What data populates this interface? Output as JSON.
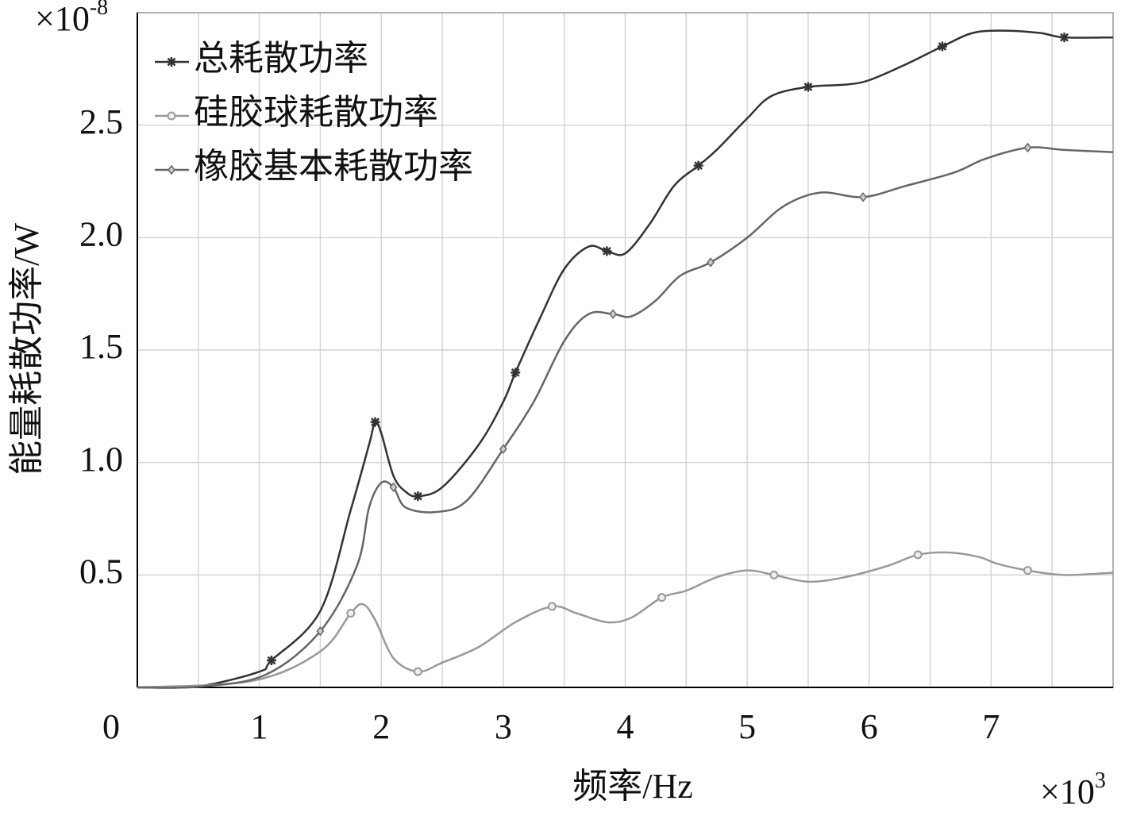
{
  "chart_data": {
    "type": "line",
    "y_label": "能量耗散功率/W",
    "x_label": "频率/Hz",
    "y_multiplier": {
      "base": "×10",
      "exponent": "-8"
    },
    "x_multiplier": {
      "base": "×10",
      "exponent": "3"
    },
    "xlim": [
      0,
      8
    ],
    "xticks": [
      0,
      1,
      2,
      3,
      4,
      5,
      6,
      7
    ],
    "ylim": [
      0,
      3
    ],
    "yticks": [
      0.5,
      {
        "value": 1,
        "label": "1.0"
      },
      1.5,
      {
        "value": 2,
        "label": "2.0"
      },
      2.5
    ],
    "grid": true,
    "legend": "upper left",
    "series": [
      {
        "name": "总耗散功率",
        "color": "#333333",
        "marker": "star",
        "x": [
          0,
          0.5,
          1.0,
          1.1,
          1.5,
          1.75,
          1.9,
          1.95,
          2.0,
          2.1,
          2.2,
          2.3,
          2.5,
          2.8,
          3.0,
          3.1,
          3.3,
          3.5,
          3.7,
          3.85,
          4.0,
          4.2,
          4.4,
          4.6,
          4.75,
          5.0,
          5.2,
          5.5,
          5.8,
          6.0,
          6.3,
          6.6,
          6.85,
          7.1,
          7.4,
          7.6,
          8.0
        ],
        "values": [
          0,
          0.005,
          0.07,
          0.12,
          0.34,
          0.79,
          1.08,
          1.18,
          1.13,
          0.94,
          0.87,
          0.85,
          0.89,
          1.08,
          1.27,
          1.4,
          1.64,
          1.86,
          1.96,
          1.94,
          1.93,
          2.06,
          2.23,
          2.32,
          2.39,
          2.53,
          2.63,
          2.67,
          2.68,
          2.7,
          2.77,
          2.85,
          2.91,
          2.92,
          2.91,
          2.89,
          2.89
        ]
      },
      {
        "name": "硅胶球耗散功率",
        "color": "#999999",
        "marker": "circle",
        "x": [
          0,
          0.95,
          1.5,
          1.75,
          1.85,
          1.95,
          2.1,
          2.3,
          2.5,
          2.8,
          3.1,
          3.4,
          3.6,
          3.85,
          4.05,
          4.3,
          4.5,
          4.75,
          5.0,
          5.22,
          5.5,
          5.8,
          6.15,
          6.4,
          6.65,
          6.9,
          7.05,
          7.3,
          7.6,
          8.0
        ],
        "values": [
          0,
          0.03,
          0.16,
          0.33,
          0.37,
          0.3,
          0.13,
          0.07,
          0.11,
          0.18,
          0.29,
          0.36,
          0.33,
          0.29,
          0.31,
          0.4,
          0.43,
          0.49,
          0.52,
          0.5,
          0.47,
          0.49,
          0.54,
          0.59,
          0.6,
          0.58,
          0.55,
          0.52,
          0.5,
          0.51
        ]
      },
      {
        "name": "橡胶基本耗散功率",
        "color": "#666666",
        "marker": "diamond",
        "x": [
          0,
          0.5,
          1.05,
          1.5,
          1.8,
          1.9,
          2.0,
          2.1,
          2.2,
          2.45,
          2.7,
          3.0,
          3.25,
          3.5,
          3.7,
          3.9,
          4.05,
          4.25,
          4.45,
          4.7,
          5.0,
          5.3,
          5.6,
          5.95,
          6.3,
          6.7,
          6.95,
          7.3,
          7.6,
          8.0
        ],
        "values": [
          0,
          0.003,
          0.056,
          0.25,
          0.54,
          0.8,
          0.91,
          0.89,
          0.8,
          0.78,
          0.83,
          1.06,
          1.27,
          1.54,
          1.66,
          1.66,
          1.65,
          1.72,
          1.83,
          1.89,
          2.0,
          2.14,
          2.2,
          2.18,
          2.23,
          2.29,
          2.35,
          2.4,
          2.39,
          2.38
        ]
      }
    ]
  }
}
